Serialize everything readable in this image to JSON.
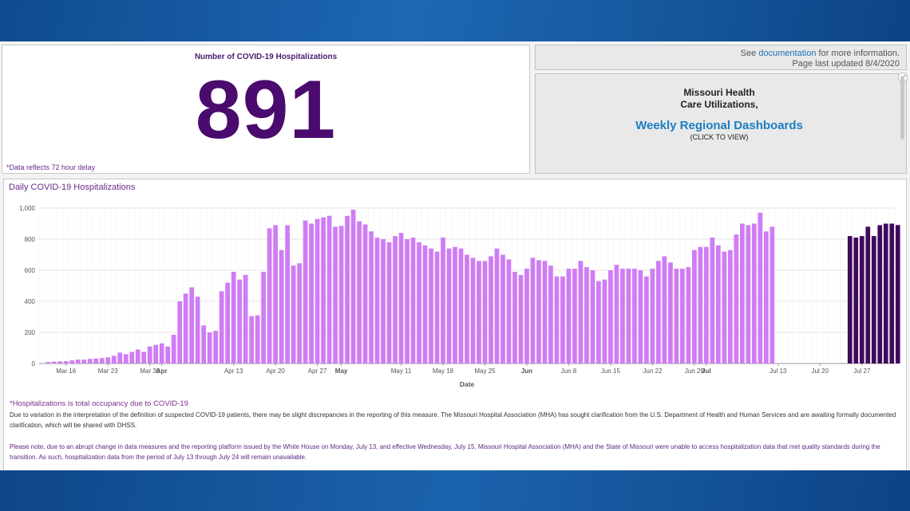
{
  "count_panel": {
    "title": "Number of COVID-19 Hospitalizations",
    "value": "891",
    "note": "*Data reflects 72 hour delay"
  },
  "doc_panel": {
    "see": "See",
    "link": "documentation",
    "rest": "for more information.",
    "updated": "Page last updated 8/4/2020"
  },
  "links_panel": {
    "line1": "Missouri Health",
    "line2": "Care Utilizations,",
    "weekly": "Weekly Regional Dashboards",
    "click": "(CLICK TO VIEW)"
  },
  "footnotes": {
    "f1": "*Hospitalizations is total occupancy due to COVID-19",
    "f2": "Due to variation in the interpretation of the definition of suspected COVID-19 patients, there may be slight discrepancies in the reporting of this measure. The Missouri Hospital Association (MHA) has sought clarification from the U.S. Department of Health and Human Services and are awaiting formally documented clarification, which will be shared with DHSS.",
    "f3": "Please note, due to an abrupt change in data measures and the reporting platform issued by the White House on Monday, July 13, and effective Wednesday, July 15, Missouri Hospital Association (MHA) and the State of Missouri were unable to access hospitalization data that met quality standards during the transition. As such, hospitalization data from the period of July 13 through July 24 will remain unavailable."
  },
  "colors": {
    "bar_light": "#cf7cf5",
    "bar_dark": "#3e0a5e",
    "accent_purple": "#4a0a6e",
    "link_blue": "#1c7ec2"
  },
  "chart_data": {
    "type": "bar",
    "title": "Daily COVID-19  Hospitalizations",
    "xlabel": "Date",
    "ylabel": "",
    "ylim": [
      0,
      1000
    ],
    "yticks": [
      "0",
      "200",
      "400",
      "600",
      "800",
      "1,000"
    ],
    "grid": true,
    "x_start": "2020-03-12",
    "x_end": "2020-08-01",
    "xtick_labels": [
      {
        "date": "2020-03-16",
        "label": "Mar 16",
        "bold": false
      },
      {
        "date": "2020-03-23",
        "label": "Mar 23",
        "bold": false
      },
      {
        "date": "2020-03-30",
        "label": "Mar 30",
        "bold": false
      },
      {
        "date": "2020-04-01",
        "label": "Apr",
        "bold": true
      },
      {
        "date": "2020-04-13",
        "label": "Apr 13",
        "bold": false
      },
      {
        "date": "2020-04-20",
        "label": "Apr 20",
        "bold": false
      },
      {
        "date": "2020-04-27",
        "label": "Apr 27",
        "bold": false
      },
      {
        "date": "2020-05-01",
        "label": "May",
        "bold": true
      },
      {
        "date": "2020-05-11",
        "label": "May 11",
        "bold": false
      },
      {
        "date": "2020-05-18",
        "label": "May 18",
        "bold": false
      },
      {
        "date": "2020-05-25",
        "label": "May 25",
        "bold": false
      },
      {
        "date": "2020-06-01",
        "label": "Jun",
        "bold": true
      },
      {
        "date": "2020-06-08",
        "label": "Jun 8",
        "bold": false
      },
      {
        "date": "2020-06-15",
        "label": "Jun 15",
        "bold": false
      },
      {
        "date": "2020-06-22",
        "label": "Jun 22",
        "bold": false
      },
      {
        "date": "2020-06-29",
        "label": "Jun 29",
        "bold": false
      },
      {
        "date": "2020-07-01",
        "label": "Jul",
        "bold": true
      },
      {
        "date": "2020-07-13",
        "label": "Jul 13",
        "bold": false
      },
      {
        "date": "2020-07-20",
        "label": "Jul 20",
        "bold": false
      },
      {
        "date": "2020-07-27",
        "label": "Jul 27",
        "bold": false
      }
    ],
    "series": [
      {
        "start_date": "2020-03-13",
        "color": "#cf7cf5",
        "values": [
          10,
          12,
          14,
          15,
          20,
          25,
          25,
          30,
          32,
          35,
          40,
          50,
          70,
          60,
          75,
          90,
          75,
          110,
          120,
          130,
          110,
          185,
          400,
          450,
          490,
          430,
          245,
          200,
          210,
          465,
          520,
          590,
          540,
          570,
          305,
          310,
          590,
          870,
          890,
          730,
          890,
          630,
          645,
          920,
          900,
          930,
          940,
          950,
          880,
          885,
          950,
          990,
          915,
          895,
          850,
          810,
          800,
          780,
          820,
          840,
          800,
          810,
          780,
          760,
          740,
          720,
          810,
          740,
          750,
          740,
          700,
          680,
          660,
          660,
          690,
          740,
          700,
          670,
          590,
          570,
          610,
          680,
          665,
          660,
          630,
          560,
          560,
          610,
          610,
          660,
          620,
          600,
          530,
          540,
          600,
          635,
          610,
          610,
          610,
          600,
          560,
          610,
          660,
          690,
          650,
          610,
          610,
          620,
          730,
          750,
          750,
          810,
          760,
          720,
          730,
          830,
          900,
          890,
          900,
          970,
          850,
          880
        ]
      },
      {
        "start_date": "2020-07-25",
        "color": "#3e0a5e",
        "values": [
          820,
          810,
          820,
          880,
          820,
          890,
          900,
          900,
          891
        ]
      }
    ]
  }
}
